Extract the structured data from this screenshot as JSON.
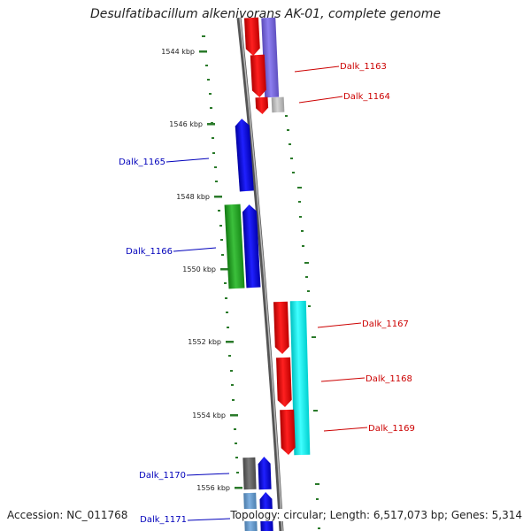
{
  "title": "Desulfatibacillum alkenivorans AK-01, complete genome",
  "footer": {
    "accession": "Accession: NC_011768",
    "topology": "Topology: circular; Length: 6,517,073 bp; Genes: 5,314"
  },
  "colors": {
    "red": "#ff0000",
    "blue": "#0000ff",
    "green": "#22aa22",
    "cyan": "#00ffff",
    "purple": "#7a6ad8",
    "gray": "#b8b8b8",
    "darkgray": "#666666",
    "steelblue": "#6699cc",
    "ruler_green": "#2a7a2a",
    "label_red": "#cc0000",
    "label_blue": "#0000bb"
  },
  "ruler_ticks": [
    {
      "label": "1544 kbp"
    },
    {
      "label": "1546 kbp"
    },
    {
      "label": "1548 kbp"
    },
    {
      "label": "1550 kbp"
    },
    {
      "label": "1552 kbp"
    },
    {
      "label": "1554 kbp"
    },
    {
      "label": "1556 kbp"
    }
  ],
  "genes": [
    {
      "label": "Dalk_1163",
      "strand": "forward",
      "color": "red"
    },
    {
      "label": "Dalk_1164",
      "strand": "forward",
      "color": "red"
    },
    {
      "label": "Dalk_1165",
      "strand": "reverse",
      "color": "blue"
    },
    {
      "label": "Dalk_1166",
      "strand": "reverse",
      "color": "blue"
    },
    {
      "label": "Dalk_1167",
      "strand": "forward",
      "color": "red"
    },
    {
      "label": "Dalk_1168",
      "strand": "forward",
      "color": "red"
    },
    {
      "label": "Dalk_1169",
      "strand": "forward",
      "color": "red"
    },
    {
      "label": "Dalk_1170",
      "strand": "reverse",
      "color": "blue"
    },
    {
      "label": "Dalk_1171",
      "strand": "reverse",
      "color": "blue"
    }
  ]
}
